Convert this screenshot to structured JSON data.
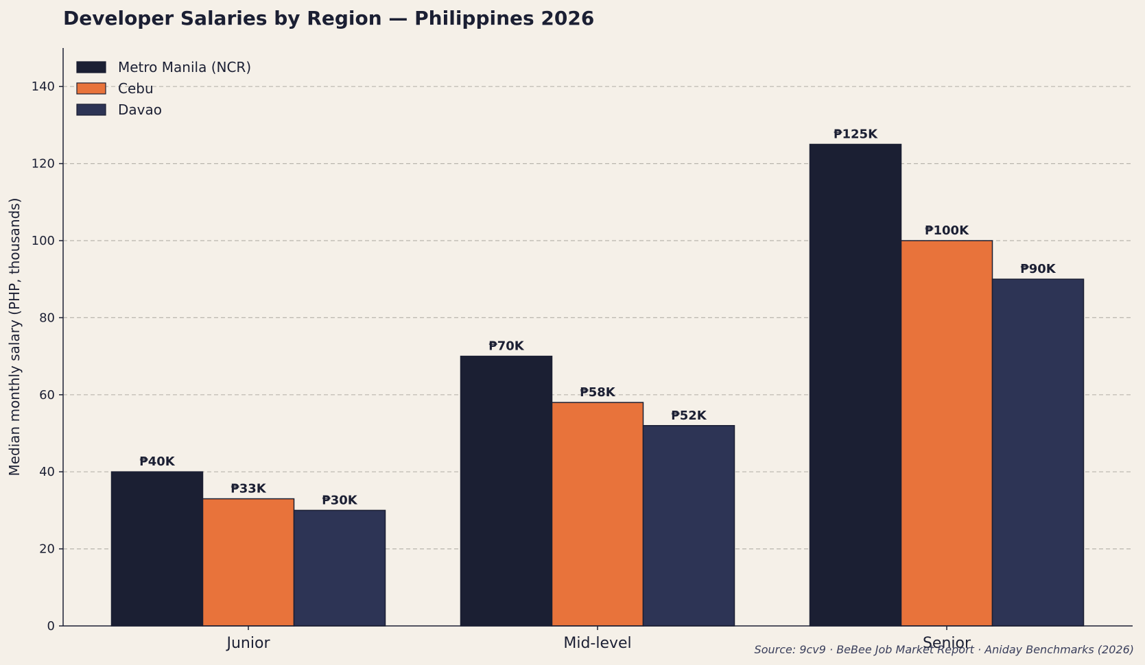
{
  "chart_data": {
    "type": "bar",
    "title": "Developer Salaries by Region — Philippines 2026",
    "xlabel": "",
    "ylabel": "Median monthly salary (PHP, thousands)",
    "ylim": [
      0,
      150
    ],
    "yticks": [
      0,
      20,
      40,
      60,
      80,
      100,
      120,
      140
    ],
    "categories": [
      "Junior",
      "Mid-level",
      "Senior"
    ],
    "series": [
      {
        "name": "Metro Manila (NCR)",
        "color": "#1b1f33",
        "values": [
          40,
          70,
          125
        ],
        "labels": [
          "₱40K",
          "₱70K",
          "₱125K"
        ]
      },
      {
        "name": "Cebu",
        "color": "#e8733b",
        "values": [
          33,
          58,
          100
        ],
        "labels": [
          "₱33K",
          "₱58K",
          "₱100K"
        ]
      },
      {
        "name": "Davao",
        "color": "#2d3455",
        "values": [
          30,
          52,
          90
        ],
        "labels": [
          "₱30K",
          "₱52K",
          "₱90K"
        ]
      }
    ],
    "grid": true,
    "grid_axis": "y",
    "legend_position": "top-left",
    "source": "Source: 9cv9 · BeBee Job Market Report · Aniday Benchmarks (2026)"
  }
}
